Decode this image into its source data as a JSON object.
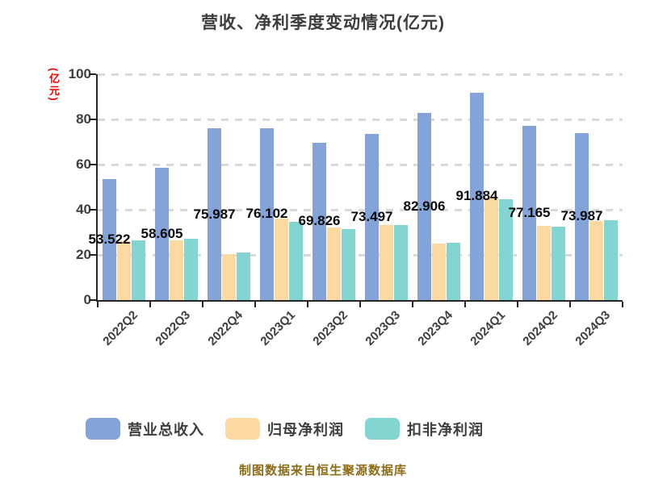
{
  "title": "营收、净利季度变动情况(亿元)",
  "y_axis_unit": "(亿元)",
  "footer": "制图数据来自恒生聚源数据库",
  "colors": {
    "revenue_bar": "#84a3d8",
    "net_profit_bar": "#fcd9a0",
    "non_gaap_profit_bar": "#82d5d0",
    "title_text": "#3d3d3d",
    "value_label_text": "#0a0a0a",
    "axis_line": "#262626",
    "gridline": "#d9d9d9",
    "y_unit_text": "#f20000",
    "footer_text": "#8d6c16"
  },
  "chart_data": {
    "type": "bar",
    "title": "营收、净利季度变动情况(亿元)",
    "categories": [
      "2022Q2",
      "2022Q3",
      "2022Q4",
      "2023Q1",
      "2023Q2",
      "2023Q3",
      "2023Q4",
      "2024Q1",
      "2024Q2",
      "2024Q3"
    ],
    "series": [
      {
        "name": "营业总收入",
        "color": "#84a3d8",
        "values": [
          53.522,
          58.605,
          75.987,
          76.102,
          69.826,
          73.497,
          82.906,
          91.884,
          77.165,
          73.987
        ],
        "value_labels": [
          "53.522",
          "58.605",
          "75.987",
          "76.102",
          "69.826",
          "73.497",
          "82.906",
          "91.884",
          "77.165",
          "73.987"
        ]
      },
      {
        "name": "归母净利润",
        "color": "#fcd9a0",
        "values": [
          26.0,
          26.5,
          20.5,
          36.0,
          32.0,
          33.2,
          25.0,
          45.5,
          33.0,
          35.0
        ],
        "value_labels": null
      },
      {
        "name": "扣非净利润",
        "color": "#82d5d0",
        "values": [
          26.6,
          27.0,
          21.2,
          34.6,
          31.5,
          33.2,
          25.4,
          44.6,
          32.6,
          35.5
        ],
        "value_labels": null
      }
    ],
    "ylabel": "(亿元)",
    "ylim": [
      0,
      100
    ],
    "y_ticks": [
      0,
      20,
      40,
      60,
      80,
      100
    ],
    "grid": true,
    "grid_style": "dashed",
    "legend_position": "bottom",
    "xtick_rotation": 45
  }
}
